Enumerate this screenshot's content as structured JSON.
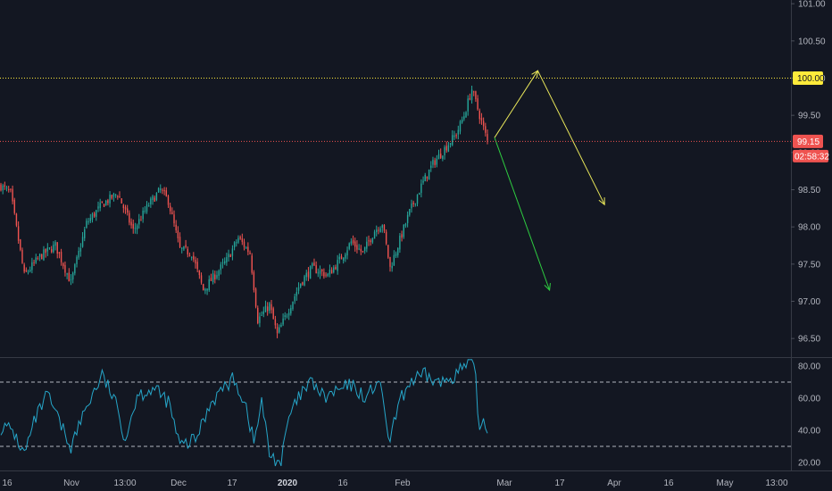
{
  "chart_data": [
    {
      "type": "candlestick",
      "title": "",
      "ylim": [
        96.25,
        101.05
      ],
      "y_ticks": [
        "101.00",
        "100.50",
        "100.00",
        "99.50",
        "99.00",
        "98.50",
        "98.00",
        "97.50",
        "97.00",
        "96.50"
      ],
      "x_ticks": [
        "16",
        "Nov",
        "13:00",
        "Dec",
        "17",
        "2020",
        "16",
        "Feb",
        "Mar",
        "17",
        "Apr",
        "16",
        "May",
        "13:00"
      ],
      "bold_x_ticks": [
        "2020"
      ],
      "price_path": [
        {
          "i": 0,
          "v": 98.55
        },
        {
          "i": 5,
          "v": 98.45
        },
        {
          "i": 12,
          "v": 97.35
        },
        {
          "i": 20,
          "v": 97.6
        },
        {
          "i": 28,
          "v": 97.75
        },
        {
          "i": 36,
          "v": 97.25
        },
        {
          "i": 44,
          "v": 98.05
        },
        {
          "i": 52,
          "v": 98.3
        },
        {
          "i": 60,
          "v": 98.45
        },
        {
          "i": 68,
          "v": 97.95
        },
        {
          "i": 76,
          "v": 98.3
        },
        {
          "i": 82,
          "v": 98.5
        },
        {
          "i": 86,
          "v": 98.35
        },
        {
          "i": 92,
          "v": 97.7
        },
        {
          "i": 98,
          "v": 97.65
        },
        {
          "i": 104,
          "v": 97.15
        },
        {
          "i": 110,
          "v": 97.35
        },
        {
          "i": 116,
          "v": 97.55
        },
        {
          "i": 122,
          "v": 97.85
        },
        {
          "i": 128,
          "v": 97.65
        },
        {
          "i": 132,
          "v": 96.75
        },
        {
          "i": 138,
          "v": 96.95
        },
        {
          "i": 142,
          "v": 96.55
        },
        {
          "i": 148,
          "v": 96.9
        },
        {
          "i": 154,
          "v": 97.25
        },
        {
          "i": 160,
          "v": 97.45
        },
        {
          "i": 168,
          "v": 97.35
        },
        {
          "i": 174,
          "v": 97.55
        },
        {
          "i": 180,
          "v": 97.8
        },
        {
          "i": 186,
          "v": 97.65
        },
        {
          "i": 192,
          "v": 97.95
        },
        {
          "i": 196,
          "v": 98.05
        },
        {
          "i": 200,
          "v": 97.45
        },
        {
          "i": 204,
          "v": 97.75
        },
        {
          "i": 210,
          "v": 98.2
        },
        {
          "i": 216,
          "v": 98.55
        },
        {
          "i": 222,
          "v": 98.85
        },
        {
          "i": 228,
          "v": 99.05
        },
        {
          "i": 234,
          "v": 99.25
        },
        {
          "i": 238,
          "v": 99.5
        },
        {
          "i": 242,
          "v": 99.85
        },
        {
          "i": 246,
          "v": 99.5
        },
        {
          "i": 250,
          "v": 99.15
        }
      ],
      "levels": [
        {
          "value": 100.0,
          "label": "100.00",
          "color": "#ffeb3b",
          "style": "dotted"
        },
        {
          "value": 99.15,
          "label": "99.15",
          "color": "#ef5350",
          "style": "dotted"
        }
      ],
      "countdown_label": "02:58:32",
      "projections": [
        {
          "color": "#e8e65a",
          "path": [
            {
              "date": "2020-02-24",
              "v": 99.2
            },
            {
              "date": "2020-03-06",
              "v": 100.1
            },
            {
              "date": "2020-03-23",
              "v": 98.3
            }
          ]
        },
        {
          "color": "#2ecc40",
          "path": [
            {
              "date": "2020-02-24",
              "v": 99.2
            },
            {
              "date": "2020-03-09",
              "v": 97.15
            }
          ]
        }
      ],
      "colors": {
        "up": "#26a69a",
        "down": "#ef5350",
        "background": "#131722",
        "grid": "#363a45"
      }
    },
    {
      "type": "line",
      "title": "",
      "ylim": [
        15,
        85
      ],
      "y_ticks": [
        "80.00",
        "60.00",
        "40.00",
        "20.00"
      ],
      "bands": [
        70,
        30
      ],
      "series": [
        {
          "color": "#26a6c9",
          "path": [
            {
              "i": 0,
              "v": 42
            },
            {
              "i": 6,
              "v": 40
            },
            {
              "i": 12,
              "v": 25
            },
            {
              "i": 18,
              "v": 48
            },
            {
              "i": 24,
              "v": 62
            },
            {
              "i": 30,
              "v": 45
            },
            {
              "i": 36,
              "v": 30
            },
            {
              "i": 44,
              "v": 55
            },
            {
              "i": 52,
              "v": 74
            },
            {
              "i": 58,
              "v": 60
            },
            {
              "i": 64,
              "v": 35
            },
            {
              "i": 70,
              "v": 62
            },
            {
              "i": 78,
              "v": 66
            },
            {
              "i": 86,
              "v": 58
            },
            {
              "i": 92,
              "v": 30
            },
            {
              "i": 100,
              "v": 34
            },
            {
              "i": 108,
              "v": 58
            },
            {
              "i": 114,
              "v": 66
            },
            {
              "i": 120,
              "v": 72
            },
            {
              "i": 126,
              "v": 55
            },
            {
              "i": 130,
              "v": 32
            },
            {
              "i": 134,
              "v": 58
            },
            {
              "i": 138,
              "v": 25
            },
            {
              "i": 144,
              "v": 20
            },
            {
              "i": 148,
              "v": 48
            },
            {
              "i": 154,
              "v": 62
            },
            {
              "i": 160,
              "v": 70
            },
            {
              "i": 166,
              "v": 60
            },
            {
              "i": 172,
              "v": 64
            },
            {
              "i": 180,
              "v": 68
            },
            {
              "i": 188,
              "v": 60
            },
            {
              "i": 194,
              "v": 72
            },
            {
              "i": 200,
              "v": 32
            },
            {
              "i": 204,
              "v": 55
            },
            {
              "i": 210,
              "v": 70
            },
            {
              "i": 218,
              "v": 74
            },
            {
              "i": 226,
              "v": 69
            },
            {
              "i": 232,
              "v": 74
            },
            {
              "i": 238,
              "v": 79
            },
            {
              "i": 242,
              "v": 82
            },
            {
              "i": 244,
              "v": 71
            },
            {
              "i": 246,
              "v": 38
            },
            {
              "i": 248,
              "v": 48
            },
            {
              "i": 250,
              "v": 40
            }
          ]
        }
      ]
    }
  ]
}
